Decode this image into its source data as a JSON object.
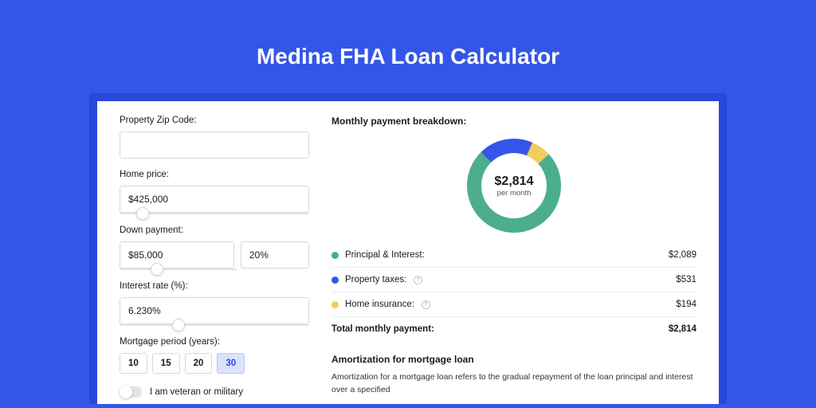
{
  "title": "Medina FHA Loan Calculator",
  "colors": {
    "page_bg": "#3456e8",
    "card_shadow": "#2a48d8",
    "card_bg": "#ffffff",
    "text": "#1a1a1a",
    "border": "#d6d8de",
    "period_active_bg": "#dbe3fb",
    "period_active_border": "#b9c7f5",
    "divider": "#eceef2"
  },
  "form": {
    "zip": {
      "label": "Property Zip Code:",
      "value": ""
    },
    "home_price": {
      "label": "Home price:",
      "value": "$425,000",
      "slider_pos_pct": 12
    },
    "down_payment": {
      "label": "Down payment:",
      "value": "$85,000",
      "pct_value": "20%",
      "slider_pos_pct": 32
    },
    "interest_rate": {
      "label": "Interest rate (%):",
      "value": "6.230%",
      "slider_pos_pct": 31
    },
    "mortgage_period": {
      "label": "Mortgage period (years):",
      "options": [
        "10",
        "15",
        "20",
        "30"
      ],
      "active_index": 3
    },
    "veteran": {
      "label": "I am veteran or military",
      "on": false
    }
  },
  "breakdown": {
    "title": "Monthly payment breakdown:",
    "center_amount": "$2,814",
    "center_sub": "per month",
    "items": [
      {
        "label": "Principal & Interest:",
        "value": "$2,089",
        "color": "#4cae8c",
        "pct": 74.2,
        "info": false
      },
      {
        "label": "Property taxes:",
        "value": "$531",
        "color": "#3456e8",
        "pct": 18.9,
        "info": true
      },
      {
        "label": "Home insurance:",
        "value": "$194",
        "color": "#f2cd5c",
        "pct": 6.9,
        "info": true
      }
    ],
    "total": {
      "label": "Total monthly payment:",
      "value": "$2,814"
    },
    "donut": {
      "radius": 50,
      "stroke_width": 18,
      "start_angle_deg": -90
    }
  },
  "amortization": {
    "title": "Amortization for mortgage loan",
    "text": "Amortization for a mortgage loan refers to the gradual repayment of the loan principal and interest over a specified"
  }
}
